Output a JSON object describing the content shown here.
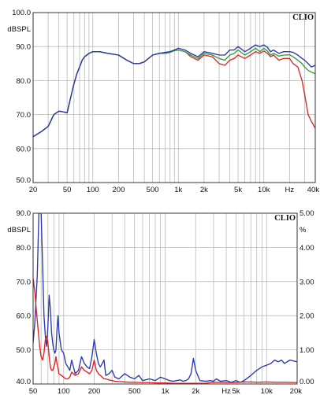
{
  "chart_data": [
    {
      "type": "line",
      "title": "",
      "brand": "CLIO",
      "ylabel": "dBSPL",
      "xlabel": "",
      "x_scale": "log",
      "xlim": [
        20,
        40000
      ],
      "ylim": [
        50,
        100
      ],
      "grid": true,
      "y_ticks": [
        "50.0",
        "60.0",
        "70.0",
        "80.0",
        "90.0",
        "100.0"
      ],
      "x_ticks": [
        {
          "v": 20,
          "label": "20"
        },
        {
          "v": 50,
          "label": "50"
        },
        {
          "v": 100,
          "label": "100"
        },
        {
          "v": 200,
          "label": "200"
        },
        {
          "v": 500,
          "label": "500"
        },
        {
          "v": 1000,
          "label": "1k"
        },
        {
          "v": 2000,
          "label": "2k"
        },
        {
          "v": 5000,
          "label": "5k"
        },
        {
          "v": 10000,
          "label": "10k"
        },
        {
          "v": 20000,
          "label": "Hz"
        },
        {
          "v": 40000,
          "label": "40k"
        }
      ],
      "series": [
        {
          "color": "#d42a2a",
          "x": [
            20,
            25,
            30,
            35,
            40,
            45,
            50,
            55,
            60,
            65,
            70,
            75,
            80,
            90,
            100,
            120,
            150,
            200,
            250,
            300,
            350,
            400,
            500,
            600,
            700,
            800,
            900,
            1000,
            1200,
            1400,
            1700,
            2000,
            2500,
            3000,
            3500,
            4000,
            4500,
            5000,
            6000,
            7000,
            8000,
            9000,
            10000,
            11000,
            12000,
            13000,
            15000,
            17000,
            20000,
            22000,
            25000,
            28000,
            30000,
            33000,
            36000,
            40000
          ],
          "y": [
            63.5,
            65,
            66.5,
            70,
            71,
            70.8,
            70.5,
            75,
            79,
            82,
            84,
            86,
            87,
            88,
            88.5,
            88.5,
            88,
            87.5,
            86,
            85,
            85,
            85.5,
            87.5,
            88,
            88,
            88.3,
            88.8,
            89,
            88.5,
            87,
            86,
            87.5,
            87,
            85,
            84.5,
            86,
            86.5,
            87.5,
            86.5,
            87.5,
            88.5,
            88,
            88.7,
            88,
            87,
            87.5,
            86,
            86.5,
            86.5,
            85,
            84,
            80,
            76,
            70,
            68,
            66
          ]
        },
        {
          "color": "#2f9e3a",
          "x": [
            20,
            25,
            30,
            35,
            40,
            45,
            50,
            55,
            60,
            65,
            70,
            75,
            80,
            90,
            100,
            120,
            150,
            200,
            250,
            300,
            350,
            400,
            500,
            600,
            700,
            800,
            900,
            1000,
            1200,
            1400,
            1700,
            2000,
            2500,
            3000,
            3500,
            4000,
            4500,
            5000,
            6000,
            7000,
            8000,
            9000,
            10000,
            11000,
            12000,
            13000,
            15000,
            17000,
            20000,
            22000,
            25000,
            28000,
            30000,
            33000,
            36000,
            40000
          ],
          "y": [
            63.5,
            65,
            66.5,
            70,
            71,
            70.8,
            70.5,
            75,
            79,
            82,
            84,
            86,
            87,
            88,
            88.5,
            88.5,
            88,
            87.5,
            86,
            85,
            85,
            85.5,
            87.5,
            88,
            88,
            88.3,
            88.8,
            89,
            88.5,
            87.5,
            86.5,
            88,
            87.5,
            86.5,
            86,
            87.5,
            88,
            89,
            87.5,
            88.5,
            89.5,
            88.5,
            89.5,
            88.7,
            87.5,
            88,
            87.2,
            87.5,
            87.6,
            87,
            86,
            85,
            84,
            83,
            82.5,
            82
          ]
        },
        {
          "color": "#2b3aa8",
          "x": [
            20,
            25,
            30,
            35,
            40,
            45,
            50,
            55,
            60,
            65,
            70,
            75,
            80,
            90,
            100,
            120,
            150,
            200,
            250,
            300,
            350,
            400,
            500,
            600,
            700,
            800,
            900,
            1000,
            1200,
            1400,
            1700,
            2000,
            2500,
            3000,
            3500,
            4000,
            4500,
            5000,
            6000,
            7000,
            8000,
            9000,
            10000,
            11000,
            12000,
            13000,
            15000,
            17000,
            20000,
            22000,
            25000,
            28000,
            30000,
            33000,
            36000,
            40000
          ],
          "y": [
            63.5,
            65,
            66.5,
            70,
            71,
            70.8,
            70.5,
            75,
            79,
            82,
            84,
            86,
            87,
            88,
            88.5,
            88.5,
            88,
            87.5,
            86,
            85,
            85,
            85.5,
            87.5,
            88,
            88.3,
            88.5,
            89,
            89.5,
            89,
            88,
            87,
            88.5,
            88,
            87.5,
            87.5,
            89,
            89,
            90,
            88.5,
            89.5,
            90.5,
            90,
            90.5,
            89.8,
            88.5,
            89,
            88,
            88.5,
            88.5,
            88.3,
            87.5,
            86.5,
            86,
            85,
            84,
            84.5
          ]
        }
      ]
    },
    {
      "type": "line",
      "title": "",
      "brand": "CLIO",
      "ylabel": "dBSPL",
      "y2label": "%",
      "xlabel": "",
      "x_scale": "log",
      "xlim": [
        50,
        20000
      ],
      "ylim": [
        40,
        90
      ],
      "y2lim": [
        0,
        5
      ],
      "grid": true,
      "y_ticks": [
        "40.0",
        "50.0",
        "60.0",
        "70.0",
        "80.0",
        "90.0"
      ],
      "y2_ticks": [
        "0.00",
        "1.00",
        "2.00",
        "3.00",
        "4.00",
        "5.00"
      ],
      "x_ticks": [
        {
          "v": 50,
          "label": "50"
        },
        {
          "v": 100,
          "label": "100"
        },
        {
          "v": 200,
          "label": "200"
        },
        {
          "v": 500,
          "label": "500"
        },
        {
          "v": 1000,
          "label": "1k"
        },
        {
          "v": 2000,
          "label": "2k"
        },
        {
          "v": 4000,
          "label": "Hz"
        },
        {
          "v": 5000,
          "label": "5k"
        },
        {
          "v": 10000,
          "label": "10k"
        },
        {
          "v": 20000,
          "label": "20k"
        }
      ],
      "series": [
        {
          "color": "#2b3aa8",
          "x": [
            50,
            52,
            55,
            57,
            60,
            62,
            64,
            66,
            68,
            70,
            72,
            74,
            76,
            78,
            80,
            82,
            84,
            86,
            88,
            90,
            95,
            100,
            105,
            110,
            115,
            120,
            130,
            140,
            150,
            160,
            170,
            180,
            190,
            200,
            210,
            220,
            230,
            240,
            250,
            260,
            280,
            300,
            320,
            350,
            400,
            450,
            500,
            550,
            600,
            700,
            800,
            900,
            1000,
            1100,
            1200,
            1300,
            1400,
            1500,
            1600,
            1700,
            1800,
            1900,
            2000,
            2200,
            2500,
            2800,
            3000,
            3200,
            3500,
            4000,
            4500,
            5000,
            5500,
            6000,
            7000,
            8000,
            9000,
            10000,
            11000,
            12000,
            13000,
            14000,
            15000,
            17000,
            20000
          ],
          "y": [
            52,
            58,
            72,
            90,
            90,
            75,
            60,
            54,
            51,
            57,
            66,
            62,
            55,
            52,
            50,
            49,
            50,
            56,
            60,
            55,
            50,
            49,
            46,
            45,
            44,
            47,
            43,
            44,
            48,
            46,
            45,
            44.5,
            48,
            53,
            49,
            46,
            45,
            46,
            47,
            42.5,
            43,
            44,
            42,
            41.5,
            43,
            42,
            41.5,
            42.5,
            41,
            41.5,
            41,
            42,
            41.5,
            41,
            40.8,
            41,
            41.2,
            40.8,
            41,
            41.5,
            43,
            47.5,
            44,
            41,
            40.8,
            41,
            40.8,
            41.5,
            40.8,
            41,
            40.5,
            41,
            40.5,
            41,
            42.5,
            44,
            45,
            45.5,
            46,
            47,
            46.5,
            47,
            46,
            47,
            46.5
          ]
        },
        {
          "color": "#e02020",
          "x": [
            50,
            52,
            54,
            56,
            58,
            60,
            62,
            64,
            66,
            68,
            70,
            72,
            74,
            76,
            78,
            80,
            82,
            84,
            86,
            88,
            90,
            95,
            100,
            105,
            110,
            115,
            120,
            130,
            140,
            150,
            160,
            170,
            180,
            190,
            200,
            210,
            220,
            230,
            240,
            250,
            260,
            280,
            300,
            320,
            350,
            400,
            450,
            500,
            600,
            700,
            800,
            900,
            1000,
            1200,
            1500,
            2000,
            2500,
            3000,
            4000,
            5000,
            6000,
            7000,
            8000,
            10000,
            12000,
            15000,
            20000
          ],
          "y": [
            71,
            67,
            61,
            56,
            51,
            48,
            47,
            49,
            53,
            54,
            52,
            48,
            45,
            44,
            44,
            45,
            46,
            48,
            46,
            44.5,
            43,
            42.5,
            42,
            41.5,
            41.5,
            42,
            43.5,
            42.5,
            43,
            45,
            44,
            43.5,
            43,
            44,
            47,
            44,
            43,
            42.5,
            42,
            41.5,
            41.5,
            41.2,
            41,
            40.8,
            40.7,
            40.6,
            40.5,
            40.5,
            40.4,
            40.4,
            40.3,
            40.3,
            40.3,
            40.2,
            40.2,
            40.2,
            40.2,
            40.5,
            40.4,
            40.4,
            40.6,
            40.6,
            40.5,
            40.6,
            40.5,
            40.5,
            40.4
          ]
        }
      ]
    }
  ]
}
